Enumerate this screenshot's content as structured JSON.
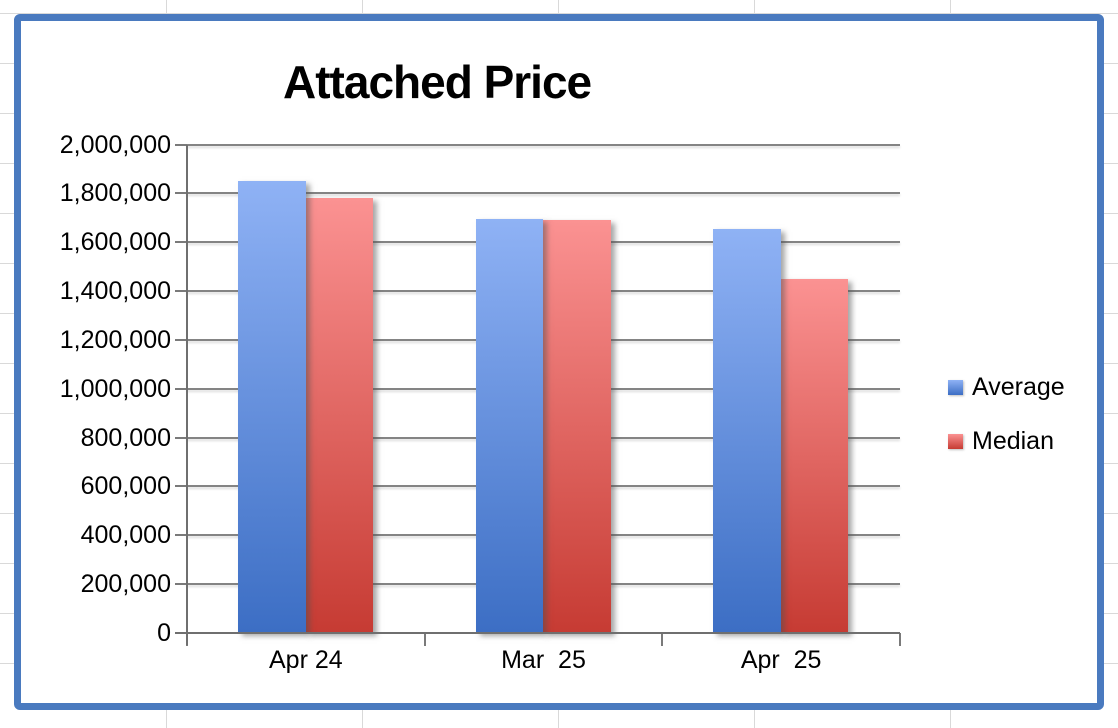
{
  "sheet": {
    "gridline_color": "#d9d9d9"
  },
  "chart_frame": {
    "border_color": "#4a7abf",
    "background": "#ffffff"
  },
  "chart_data": {
    "type": "bar",
    "title": "Attached Price",
    "categories": [
      "Apr 24",
      "Mar  25",
      "Apr  25"
    ],
    "series": [
      {
        "name": "Average",
        "values": [
          1850000,
          1695000,
          1655000
        ],
        "color_top": "#8fb2f5",
        "color_bottom": "#3c6ec4"
      },
      {
        "name": "Median",
        "values": [
          1780000,
          1690000,
          1450000
        ],
        "color_top": "#fb9292",
        "color_bottom": "#c63b33"
      }
    ],
    "xlabel": "",
    "ylabel": "",
    "ylim": [
      0,
      2000000
    ],
    "ytick_step": 200000,
    "ytick_labels": [
      "0",
      "200,000",
      "400,000",
      "600,000",
      "800,000",
      "1,000,000",
      "1,200,000",
      "1,400,000",
      "1,600,000",
      "1,800,000",
      "2,000,000"
    ],
    "grid": true,
    "gridline_color": "#848484",
    "axis_color": "#6f6f6f",
    "legend_position": "right"
  }
}
